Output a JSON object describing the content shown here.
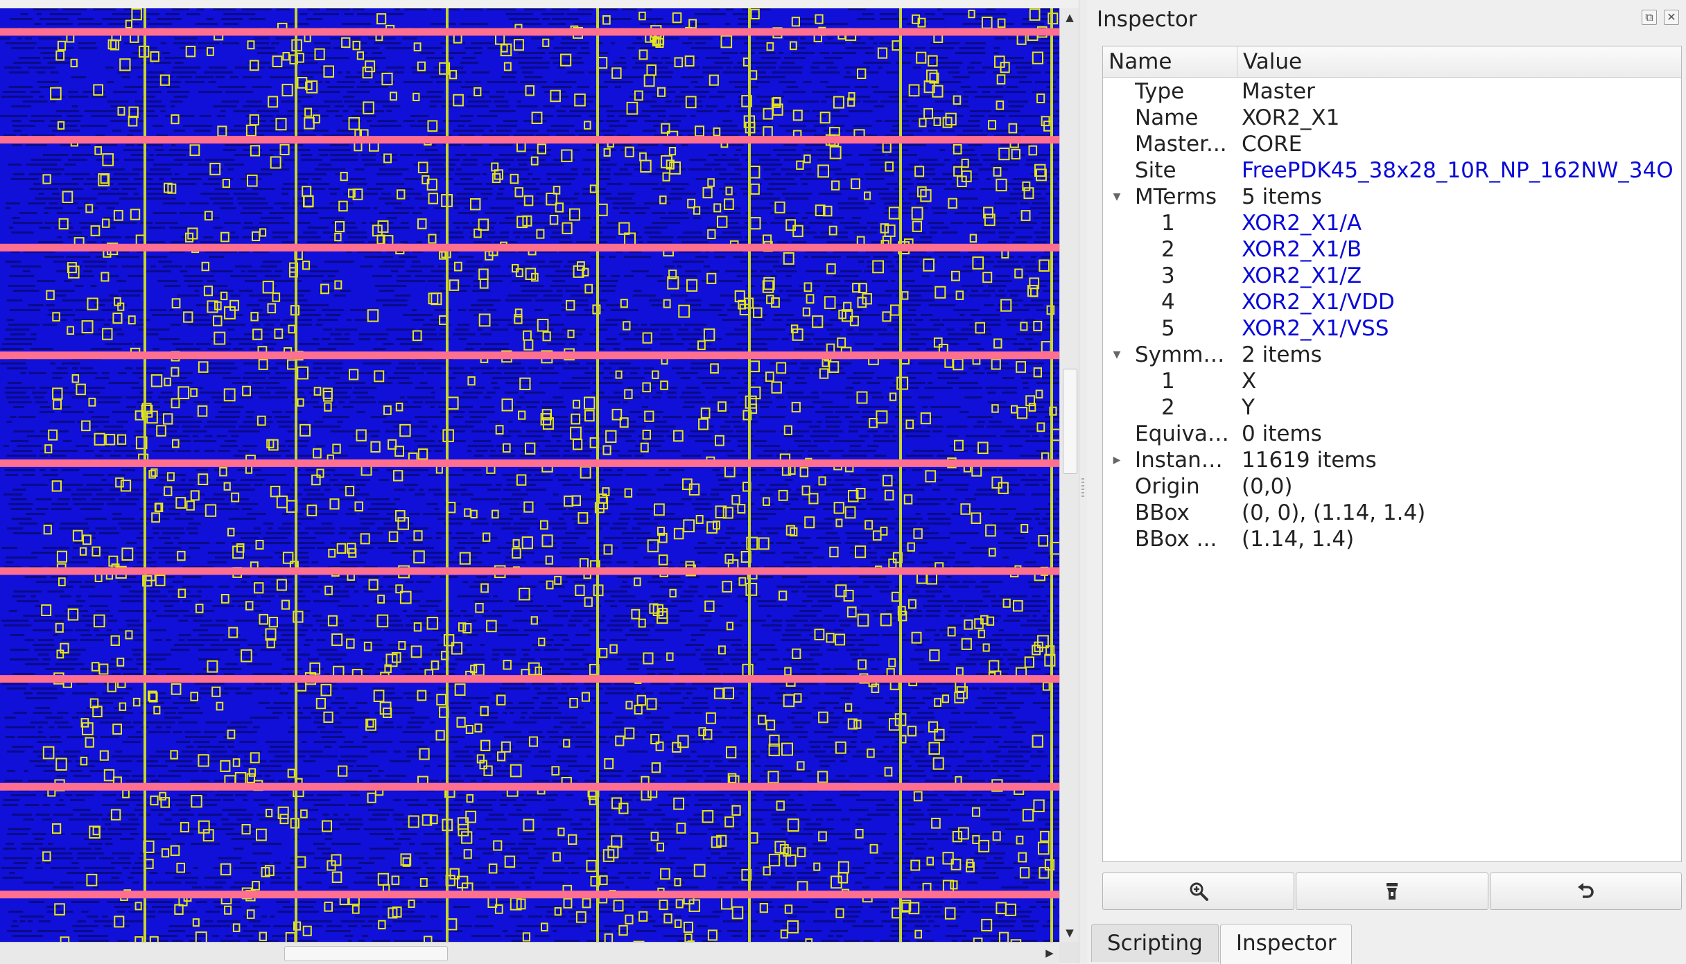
{
  "inspector": {
    "title": "Inspector",
    "header": {
      "name": "Name",
      "value": "Value"
    },
    "properties": {
      "type": {
        "label": "Type",
        "value": "Master"
      },
      "name": {
        "label": "Name",
        "value": "XOR2_X1"
      },
      "master": {
        "label": "Master...",
        "value": "CORE"
      },
      "site": {
        "label": "Site",
        "value": "FreePDK45_38x28_10R_NP_162NW_34O"
      },
      "mterms": {
        "label": "MTerms",
        "value": "5 items",
        "expanded": true,
        "items": [
          {
            "index": "1",
            "value": "XOR2_X1/A"
          },
          {
            "index": "2",
            "value": "XOR2_X1/B"
          },
          {
            "index": "3",
            "value": "XOR2_X1/Z"
          },
          {
            "index": "4",
            "value": "XOR2_X1/VDD"
          },
          {
            "index": "5",
            "value": "XOR2_X1/VSS"
          }
        ]
      },
      "symmetry": {
        "label": "Symme...",
        "value": "2 items",
        "expanded": true,
        "items": [
          {
            "index": "1",
            "value": "X"
          },
          {
            "index": "2",
            "value": "Y"
          }
        ]
      },
      "equivalent": {
        "label": "Equival...",
        "value": "0 items"
      },
      "instances": {
        "label": "Instances",
        "value": "11619 items",
        "expanded": false
      },
      "origin": {
        "label": "Origin",
        "value": "(0,0)"
      },
      "bbox": {
        "label": "BBox",
        "value": "(0, 0), (1.14, 1.4)"
      },
      "bbox_size": {
        "label": "BBox ...",
        "value": "(1.14, 1.4)"
      }
    },
    "toolbar_icons": [
      "zoom-in-icon",
      "highlight-icon",
      "undo-icon"
    ]
  },
  "tabs": [
    {
      "label": "Scripting",
      "active": false
    },
    {
      "label": "Inspector",
      "active": true
    }
  ],
  "layout_colors": {
    "background": "#1010d8",
    "power_rail": "#ff6f8f",
    "strap": "#c9d62a",
    "cell_outline": "#e6e61a",
    "shape_fill": "#0a0a8a"
  }
}
